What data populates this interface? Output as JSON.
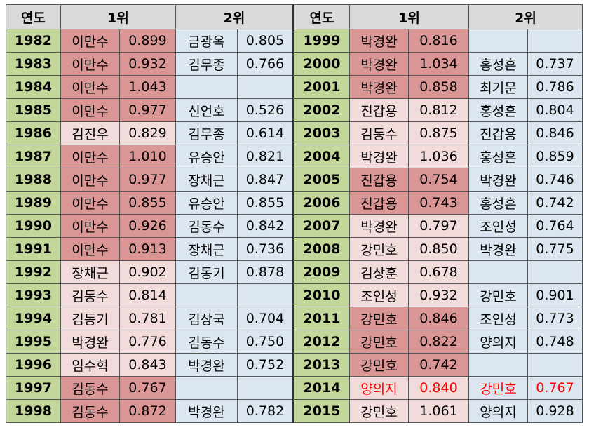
{
  "halves": [
    {
      "headers": [
        "연도",
        "1위",
        "2위"
      ],
      "rows": [
        [
          "1982",
          "이만수",
          "0.899",
          "금광옥",
          "0.805"
        ],
        [
          "1983",
          "이만수",
          "0.932",
          "김무종",
          "0.766"
        ],
        [
          "1984",
          "이만수",
          "1.043",
          null,
          null
        ],
        [
          "1985",
          "이만수",
          "0.977",
          "신언호",
          "0.526"
        ],
        [
          "1986",
          "김진우",
          "0.829",
          "김무종",
          "0.614"
        ],
        [
          "1987",
          "이만수",
          "1.010",
          "유승안",
          "0.821"
        ],
        [
          "1988",
          "이만수",
          "0.977",
          "장채근",
          "0.847"
        ],
        [
          "1989",
          "이만수",
          "0.855",
          "유승안",
          "0.855"
        ],
        [
          "1990",
          "이만수",
          "0.926",
          "김동수",
          "0.842"
        ],
        [
          "1991",
          "이만수",
          "0.913",
          "장채근",
          "0.736"
        ],
        [
          "1992",
          "장채근",
          "0.902",
          "김동기",
          "0.878"
        ],
        [
          "1993",
          "김동수",
          "0.814",
          null,
          null
        ],
        [
          "1994",
          "김동기",
          "0.781",
          "김상국",
          "0.704"
        ],
        [
          "1995",
          "박경완",
          "0.776",
          "김동수",
          "0.750"
        ],
        [
          "1996",
          "임수혁",
          "0.843",
          "박경완",
          "0.752"
        ],
        [
          "1997",
          "김동수",
          "0.767",
          null,
          null
        ],
        [
          "1998",
          "김동수",
          "0.872",
          "박경완",
          "0.782"
        ]
      ]
    },
    {
      "headers": [
        "연도",
        "1위",
        "2위"
      ],
      "rows": [
        [
          "1999",
          "박경완",
          "0.816",
          null,
          null
        ],
        [
          "2000",
          "박경완",
          "1.034",
          "홍성흔",
          "0.737"
        ],
        [
          "2001",
          "박경완",
          "0.858",
          "최기문",
          "0.786"
        ],
        [
          "2002",
          "진갑용",
          "0.812",
          "홍성흔",
          "0.804"
        ],
        [
          "2003",
          "김동수",
          "0.875",
          "진갑용",
          "0.846"
        ],
        [
          "2004",
          "박경완",
          "1.036",
          "홍성흔",
          "0.859"
        ],
        [
          "2005",
          "진갑용",
          "0.754",
          "박경완",
          "0.746"
        ],
        [
          "2006",
          "진갑용",
          "0.743",
          "홍성흔",
          "0.742"
        ],
        [
          "2007",
          "박경완",
          "0.797",
          "조인성",
          "0.764"
        ],
        [
          "2008",
          "강민호",
          "0.850",
          "박경완",
          "0.775"
        ],
        [
          "2009",
          "김상훈",
          "0.678",
          null,
          null
        ],
        [
          "2010",
          "조인성",
          "0.932",
          "강민호",
          "0.901"
        ],
        [
          "2011",
          "강민호",
          "0.846",
          "조인성",
          "0.773"
        ],
        [
          "2012",
          "강민호",
          "0.822",
          "양의지",
          "0.748"
        ],
        [
          "2013",
          "강민호",
          "0.742",
          null,
          null
        ],
        [
          "2014",
          "양의지",
          "0.840",
          "강민호",
          "0.767"
        ],
        [
          "2015",
          "강민호",
          "1.061",
          "양의지",
          "0.928"
        ]
      ]
    }
  ]
}
